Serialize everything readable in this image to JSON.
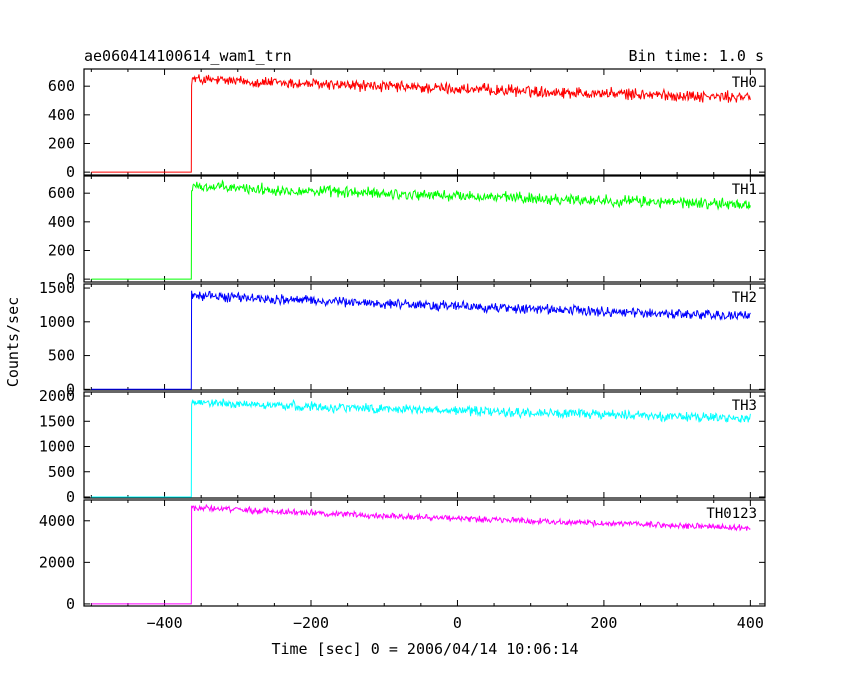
{
  "chart_data": {
    "type": "line",
    "title": "ae060414100614_wam1_trn",
    "subtitle": "Bin time: 1.0 s",
    "xlabel": "Time [sec] 0 = 2006/04/14 10:06:14",
    "ylabel": "Counts/sec",
    "xlim": [
      -510,
      420
    ],
    "x_ticks": [
      -400,
      -200,
      0,
      200,
      400
    ],
    "x_tick_labels": [
      "−400",
      "−200",
      "0",
      "200",
      "400"
    ],
    "grid": false,
    "legend": "none",
    "onset_time": -363,
    "data_end_time": 400,
    "data_start_time": -500,
    "panels": [
      {
        "name": "TH0",
        "color": "#ff0000",
        "ylim": [
          -20,
          720
        ],
        "y_ticks": [
          0,
          200,
          400,
          600
        ],
        "y_tick_labels": [
          "0",
          "200",
          "400",
          "600"
        ],
        "baseline": 0,
        "start_level": 650,
        "end_level": 520,
        "noise": 60
      },
      {
        "name": "TH1",
        "color": "#00ff00",
        "ylim": [
          -20,
          720
        ],
        "y_ticks": [
          0,
          200,
          400,
          600
        ],
        "y_tick_labels": [
          "0",
          "200",
          "400",
          "600"
        ],
        "baseline": 0,
        "start_level": 650,
        "end_level": 520,
        "noise": 60
      },
      {
        "name": "TH2",
        "color": "#0000ff",
        "ylim": [
          -10,
          1560
        ],
        "y_ticks": [
          0,
          500,
          1000,
          1500
        ],
        "y_tick_labels": [
          "0",
          "500",
          "1000",
          "1500"
        ],
        "baseline": 0,
        "start_level": 1400,
        "end_level": 1080,
        "noise": 110
      },
      {
        "name": "TH3",
        "color": "#00ffff",
        "ylim": [
          -20,
          2080
        ],
        "y_ticks": [
          0,
          500,
          1000,
          1500,
          2000
        ],
        "y_tick_labels": [
          "0",
          "500",
          "1000",
          "1500",
          "2000"
        ],
        "baseline": 0,
        "start_level": 1880,
        "end_level": 1560,
        "noise": 140
      },
      {
        "name": "TH0123",
        "color": "#ff00ff",
        "ylim": [
          -100,
          5000
        ],
        "y_ticks": [
          0,
          2000,
          4000
        ],
        "y_tick_labels": [
          "0",
          "2000",
          "4000"
        ],
        "baseline": 0,
        "start_level": 4650,
        "end_level": 3650,
        "noise": 220
      }
    ]
  }
}
